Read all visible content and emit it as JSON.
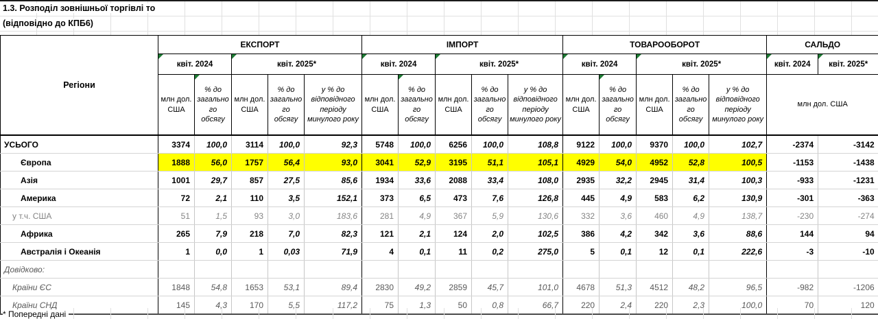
{
  "title": {
    "line1": "1.3. Розподіл зовнішньої торгівлі то",
    "line2": "(відповідно до КПБ6)"
  },
  "footer": {
    "note": "* Попередні дані"
  },
  "colors": {
    "highlight_row": "#ffff00",
    "comment_marker": "#1e7b34",
    "muted_text": "#848484",
    "reference_text": "#595959"
  },
  "table": {
    "regions_header": "Регіони",
    "sections": {
      "export": "ЕКСПОРТ",
      "import": "ІМПОРТ",
      "turnover": "ТОВАРООБОРОТ",
      "balance": "САЛЬДО"
    },
    "period_2024": "квіт. 2024",
    "period_2025": "квіт. 2025*",
    "subheaders": {
      "mln_usd": "млн дол. США",
      "pct_of_total": "% до загального обсягу",
      "pct_prev_year": "у % до відповідного періоду минулого року",
      "balance_unit": "млн дол. США"
    },
    "rows": [
      {
        "label": "УСЬОГО",
        "style": "total",
        "highlight": false,
        "values": [
          "3374",
          "100,0",
          "3114",
          "100,0",
          "92,3",
          "5748",
          "100,0",
          "6256",
          "100,0",
          "108,8",
          "9122",
          "100,0",
          "9370",
          "100,0",
          "102,7",
          "-2374",
          "-3142"
        ]
      },
      {
        "label": "Європа",
        "style": "continent",
        "highlight": true,
        "values": [
          "1888",
          "56,0",
          "1757",
          "56,4",
          "93,0",
          "3041",
          "52,9",
          "3195",
          "51,1",
          "105,1",
          "4929",
          "54,0",
          "4952",
          "52,8",
          "100,5",
          "-1153",
          "-1438"
        ]
      },
      {
        "label": "Азія",
        "style": "continent",
        "highlight": false,
        "values": [
          "1001",
          "29,7",
          "857",
          "27,5",
          "85,6",
          "1934",
          "33,6",
          "2088",
          "33,4",
          "108,0",
          "2935",
          "32,2",
          "2945",
          "31,4",
          "100,3",
          "-933",
          "-1231"
        ]
      },
      {
        "label": "Америка",
        "style": "continent",
        "highlight": false,
        "values": [
          "72",
          "2,1",
          "110",
          "3,5",
          "152,1",
          "373",
          "6,5",
          "473",
          "7,6",
          "126,8",
          "445",
          "4,9",
          "583",
          "6,2",
          "130,9",
          "-301",
          "-363"
        ]
      },
      {
        "label": "у т.ч. США",
        "style": "sub",
        "highlight": false,
        "values": [
          "51",
          "1,5",
          "93",
          "3,0",
          "183,6",
          "281",
          "4,9",
          "367",
          "5,9",
          "130,6",
          "332",
          "3,6",
          "460",
          "4,9",
          "138,7",
          "-230",
          "-274"
        ]
      },
      {
        "label": "Африка",
        "style": "continent",
        "highlight": false,
        "values": [
          "265",
          "7,9",
          "218",
          "7,0",
          "82,3",
          "121",
          "2,1",
          "124",
          "2,0",
          "102,5",
          "386",
          "4,2",
          "342",
          "3,6",
          "88,6",
          "144",
          "94"
        ]
      },
      {
        "label": "Австралія і Океанія",
        "style": "continent",
        "highlight": false,
        "values": [
          "1",
          "0,0",
          "1",
          "0,03",
          "71,9",
          "4",
          "0,1",
          "11",
          "0,2",
          "275,0",
          "5",
          "0,1",
          "12",
          "0,1",
          "222,6",
          "-3",
          "-10"
        ]
      },
      {
        "label": "Довідково:",
        "style": "note",
        "highlight": false,
        "values": [
          "",
          "",
          "",
          "",
          "",
          "",
          "",
          "",
          "",
          "",
          "",
          "",
          "",
          "",
          "",
          "",
          ""
        ]
      },
      {
        "label": "Країни ЄС",
        "style": "ref",
        "highlight": false,
        "values": [
          "1848",
          "54,8",
          "1653",
          "53,1",
          "89,4",
          "2830",
          "49,2",
          "2859",
          "45,7",
          "101,0",
          "4678",
          "51,3",
          "4512",
          "48,2",
          "96,5",
          "-982",
          "-1206"
        ]
      },
      {
        "label": "Країни СНД",
        "style": "ref",
        "highlight": false,
        "values": [
          "145",
          "4,3",
          "170",
          "5,5",
          "117,2",
          "75",
          "1,3",
          "50",
          "0,8",
          "66,7",
          "220",
          "2,4",
          "220",
          "2,3",
          "100,0",
          "70",
          "120"
        ]
      }
    ]
  }
}
